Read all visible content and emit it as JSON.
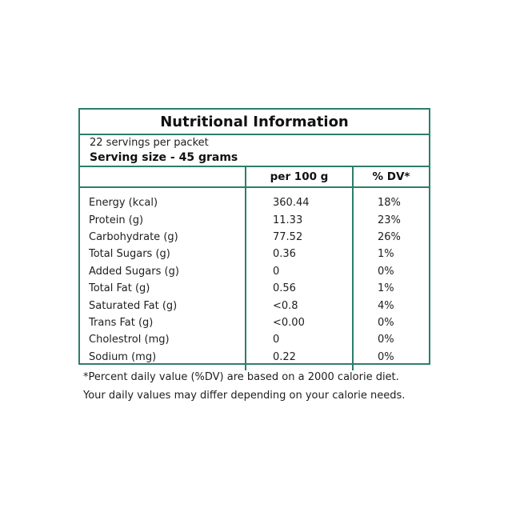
{
  "label": {
    "title": "Nutritional Information",
    "servings_per_packet": "22 servings per packet",
    "serving_size": "Serving size - 45 grams",
    "headers": {
      "nutrient": "",
      "per_100g": "per 100 g",
      "dv": "% DV*"
    },
    "rows": [
      {
        "nutrient": "Energy (kcal)",
        "per_100g": "360.44",
        "dv": "18%"
      },
      {
        "nutrient": "Protein (g)",
        "per_100g": "11.33",
        "dv": "23%"
      },
      {
        "nutrient": "Carbohydrate (g)",
        "per_100g": "77.52",
        "dv": "26%"
      },
      {
        "nutrient": "Total Sugars (g)",
        "per_100g": "0.36",
        "dv": "1%"
      },
      {
        "nutrient": "Added Sugars (g)",
        "per_100g": "0",
        "dv": "0%"
      },
      {
        "nutrient": "Total Fat (g)",
        "per_100g": "0.56",
        "dv": "1%"
      },
      {
        "nutrient": "Saturated Fat (g)",
        "per_100g": "<0.8",
        "dv": "4%"
      },
      {
        "nutrient": "Trans Fat (g)",
        "per_100g": "<0.00",
        "dv": "0%"
      },
      {
        "nutrient": "Cholestrol (mg)",
        "per_100g": "0",
        "dv": "0%"
      },
      {
        "nutrient": "Sodium (mg)",
        "per_100g": "0.22",
        "dv": "0%"
      }
    ]
  },
  "footnote": {
    "line1": "*Percent daily value (%DV) are based on a 2000 calorie diet.",
    "line2": "Your daily values may differ depending on your calorie needs."
  },
  "colors": {
    "border": "#2e7d6b",
    "text": "#1e1e1e"
  }
}
